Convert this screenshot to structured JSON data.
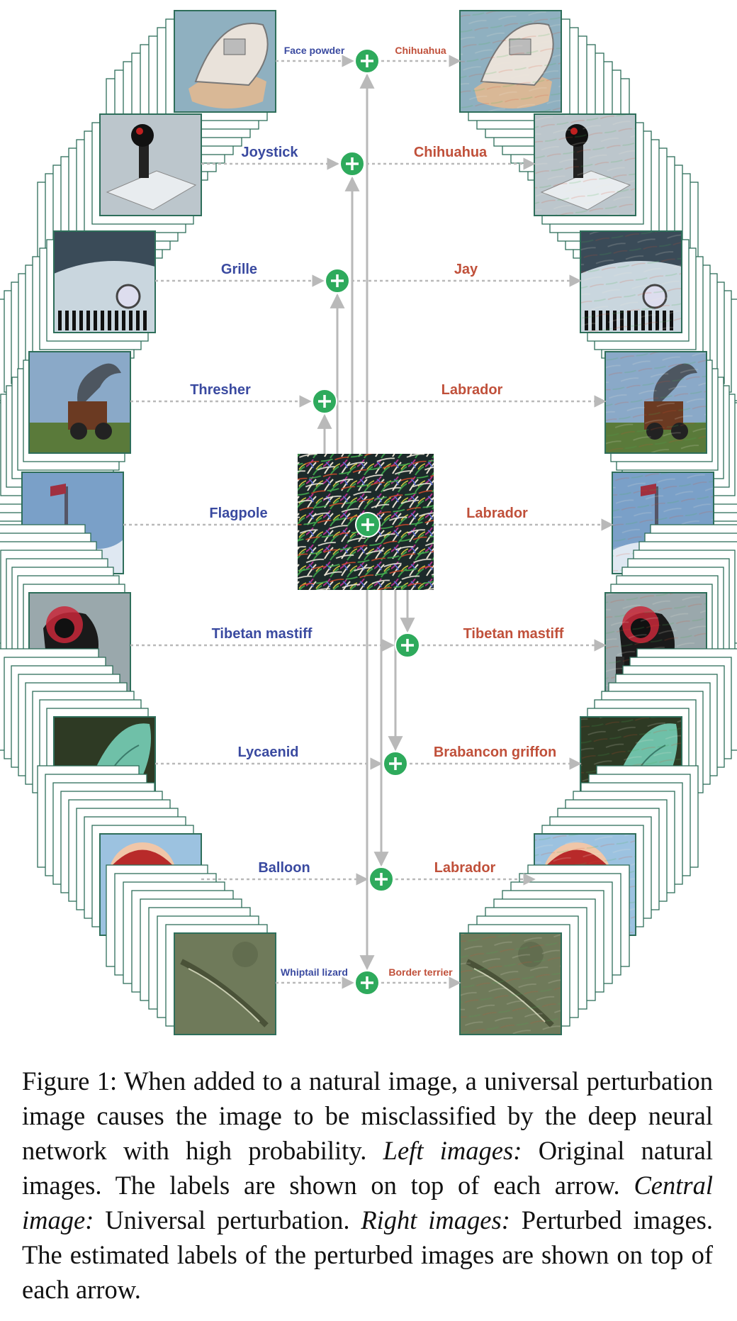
{
  "colors": {
    "left_label": "#3a4aa0",
    "right_label": "#c0503a",
    "plus_circle": "#2eaa5c",
    "frame_stroke": "#2e6e5a",
    "arrow": "#b9b9b9"
  },
  "rows": [
    {
      "left_label": "Face powder",
      "right_label": "Chihuahua",
      "scene": "face-powder"
    },
    {
      "left_label": "Joystick",
      "right_label": "Chihuahua",
      "scene": "joystick"
    },
    {
      "left_label": "Grille",
      "right_label": "Jay",
      "scene": "grille"
    },
    {
      "left_label": "Thresher",
      "right_label": "Labrador",
      "scene": "thresher"
    },
    {
      "left_label": "Flagpole",
      "right_label": "Labrador",
      "scene": "flagpole"
    },
    {
      "left_label": "Tibetan mastiff",
      "right_label": "Tibetan mastiff",
      "scene": "mastiff"
    },
    {
      "left_label": "Lycaenid",
      "right_label": "Brabancon griffon",
      "scene": "lycaenid"
    },
    {
      "left_label": "Balloon",
      "right_label": "Labrador",
      "scene": "balloon"
    },
    {
      "left_label": "Whiptail lizard",
      "right_label": "Border terrier",
      "scene": "lizard"
    }
  ],
  "caption": {
    "prefix": "Figure 1: ",
    "part1": "When added to a natural image, a universal perturbation image causes the image to be misclassified by the deep neural network with high probability. ",
    "left_title": "Left images:",
    "left_text": " Original natural images. The labels are shown on top of each arrow. ",
    "central_title": "Central image:",
    "central_text": " Universal perturbation. ",
    "right_title": "Right images:",
    "right_text": " Perturbed images. The estimated labels of the perturbed images are shown on top of each arrow."
  }
}
